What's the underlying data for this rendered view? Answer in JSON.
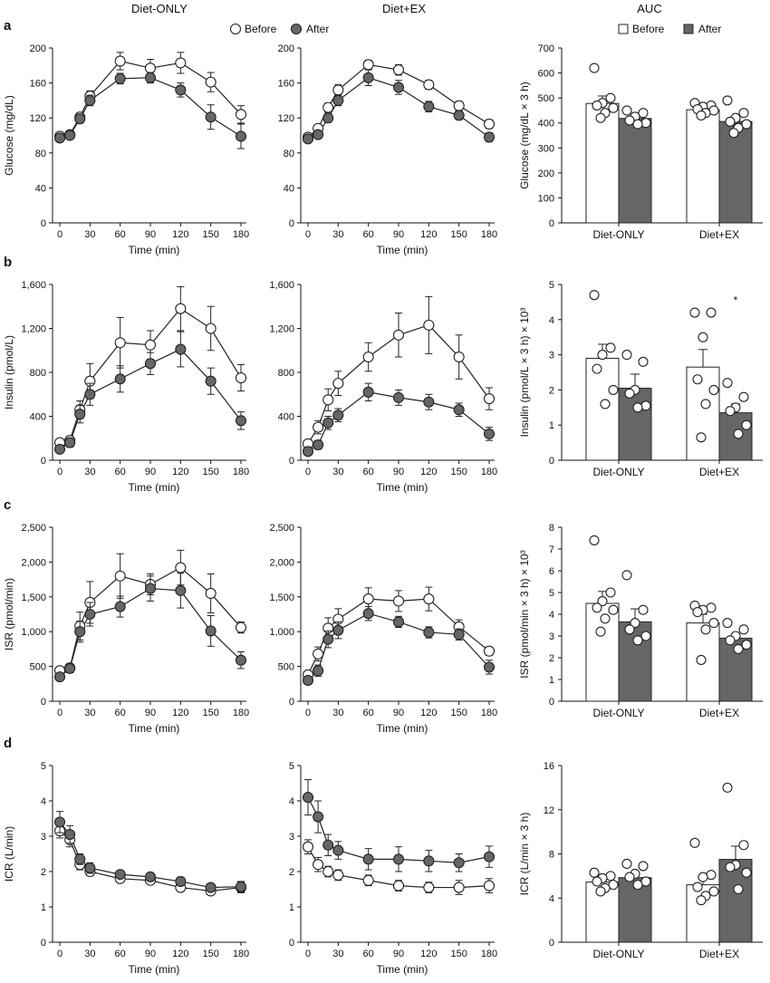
{
  "column_headers": [
    "Diet-ONLY",
    "Diet+EX",
    "AUC"
  ],
  "legend": {
    "line": {
      "before": "Before",
      "after": "After"
    },
    "bar": {
      "before": "Before",
      "after": "After"
    }
  },
  "colors": {
    "before_fill": "#ffffff",
    "after_fill": "#666666",
    "stroke": "#222222",
    "axis": "#111111"
  },
  "rows": [
    {
      "letter": "a",
      "line_ylabel": "Glucose (mg/dL)",
      "auc_ylabel": "Glucose (mg/dL × 3 h)"
    },
    {
      "letter": "b",
      "line_ylabel": "Insulin (pmol/L)",
      "auc_ylabel": "Insulin (pmol/L × 3 h) × 10³"
    },
    {
      "letter": "c",
      "line_ylabel": "ISR (pmol/min)",
      "auc_ylabel": "ISR (pmol/min × 3 h) × 10³"
    },
    {
      "letter": "d",
      "line_ylabel": "ICR (L/min)",
      "auc_ylabel": "ICR (L/min × 3 h)"
    }
  ],
  "chart_data": [
    {
      "id": "a-diet-only",
      "type": "line",
      "xlabel": "Time (min)",
      "ylabel": "Glucose (mg/dL)",
      "x": [
        0,
        10,
        20,
        30,
        60,
        90,
        120,
        150,
        180
      ],
      "xticks": [
        0,
        30,
        60,
        90,
        120,
        150,
        180
      ],
      "ylim": [
        0,
        200
      ],
      "yticks": [
        0,
        40,
        80,
        120,
        160,
        200
      ],
      "ytick_labels": [
        "0",
        "40",
        "80",
        "120",
        "160",
        "200"
      ],
      "series": [
        {
          "name": "Before",
          "values": [
            99,
            101,
            121,
            145,
            185,
            177,
            183,
            161,
            124
          ],
          "err": [
            3,
            3,
            5,
            6,
            10,
            10,
            12,
            11,
            10
          ]
        },
        {
          "name": "After",
          "values": [
            97,
            100,
            119,
            140,
            165,
            166,
            152,
            121,
            99
          ],
          "err": [
            3,
            3,
            5,
            6,
            6,
            6,
            8,
            14,
            14
          ]
        }
      ]
    },
    {
      "id": "a-diet-ex",
      "type": "line",
      "xlabel": "Time (min)",
      "ylabel": "",
      "x": [
        0,
        10,
        20,
        30,
        60,
        90,
        120,
        150,
        180
      ],
      "xticks": [
        0,
        30,
        60,
        90,
        120,
        150,
        180
      ],
      "ylim": [
        0,
        200
      ],
      "yticks": [
        0,
        40,
        80,
        120,
        160,
        200
      ],
      "ytick_labels": [
        "0",
        "40",
        "80",
        "120",
        "160",
        "200"
      ],
      "series": [
        {
          "name": "Before",
          "values": [
            98,
            108,
            132,
            152,
            181,
            175,
            158,
            134,
            113
          ],
          "err": [
            3,
            4,
            5,
            6,
            5,
            6,
            5,
            5,
            5
          ]
        },
        {
          "name": "After",
          "values": [
            96,
            101,
            120,
            140,
            166,
            155,
            133,
            123,
            98
          ],
          "err": [
            3,
            4,
            5,
            6,
            9,
            8,
            6,
            5,
            5
          ]
        }
      ]
    },
    {
      "id": "a-auc",
      "type": "bar",
      "categories": [
        "Diet-ONLY",
        "Diet+EX"
      ],
      "ylabel": "Glucose (mg/dL × 3 h)",
      "ylim": [
        0,
        700
      ],
      "yticks": [
        0,
        100,
        200,
        300,
        400,
        500,
        600,
        700
      ],
      "ytick_labels": [
        "0",
        "100",
        "200",
        "300",
        "400",
        "500",
        "600",
        "700"
      ],
      "series": [
        {
          "name": "Before",
          "values": [
            478,
            453
          ],
          "err": [
            30,
            15
          ],
          "points": [
            [
              620,
              500,
              480,
              470,
              460,
              440,
              420
            ],
            [
              480,
              470,
              465,
              455,
              450,
              440,
              430
            ]
          ]
        },
        {
          "name": "After",
          "values": [
            418,
            406
          ],
          "err": [
            15,
            18
          ],
          "points": [
            [
              450,
              440,
              425,
              410,
              400,
              395
            ],
            [
              490,
              440,
              420,
              405,
              395,
              380,
              360
            ]
          ]
        }
      ]
    },
    {
      "id": "b-diet-only",
      "type": "line",
      "xlabel": "Time (min)",
      "ylabel": "Insulin (pmol/L)",
      "x": [
        0,
        10,
        20,
        30,
        60,
        90,
        120,
        150,
        180
      ],
      "xticks": [
        0,
        30,
        60,
        90,
        120,
        150,
        180
      ],
      "ylim": [
        0,
        1600
      ],
      "yticks": [
        0,
        400,
        800,
        1200,
        1600
      ],
      "ytick_labels": [
        "0",
        "400",
        "800",
        "1,200",
        "1,600"
      ],
      "series": [
        {
          "name": "Before",
          "values": [
            160,
            180,
            460,
            720,
            1070,
            1050,
            1380,
            1200,
            750
          ],
          "err": [
            30,
            40,
            80,
            160,
            230,
            130,
            200,
            200,
            120
          ]
        },
        {
          "name": "After",
          "values": [
            100,
            160,
            420,
            600,
            740,
            880,
            1010,
            720,
            360
          ],
          "err": [
            30,
            40,
            80,
            100,
            120,
            100,
            160,
            120,
            80
          ]
        }
      ]
    },
    {
      "id": "b-diet-ex",
      "type": "line",
      "xlabel": "Time (min)",
      "ylabel": "",
      "x": [
        0,
        10,
        20,
        30,
        60,
        90,
        120,
        150,
        180
      ],
      "xticks": [
        0,
        30,
        60,
        90,
        120,
        150,
        180
      ],
      "ylim": [
        0,
        1600
      ],
      "yticks": [
        0,
        400,
        800,
        1200,
        1600
      ],
      "ytick_labels": [
        "0",
        "400",
        "800",
        "1,200",
        "1,600"
      ],
      "series": [
        {
          "name": "Before",
          "values": [
            150,
            300,
            550,
            700,
            940,
            1140,
            1230,
            940,
            560
          ],
          "err": [
            30,
            60,
            100,
            110,
            130,
            200,
            260,
            200,
            100
          ]
        },
        {
          "name": "After",
          "values": [
            80,
            140,
            340,
            410,
            620,
            570,
            530,
            460,
            240
          ],
          "err": [
            20,
            40,
            60,
            60,
            80,
            70,
            70,
            60,
            60
          ]
        }
      ]
    },
    {
      "id": "b-auc",
      "type": "bar",
      "categories": [
        "Diet-ONLY",
        "Diet+EX"
      ],
      "ylabel": "Insulin (pmol/L × 3 h) × 10³",
      "ylim": [
        0,
        5
      ],
      "yticks": [
        0,
        1,
        2,
        3,
        4,
        5
      ],
      "ytick_labels": [
        "0",
        "1",
        "2",
        "3",
        "4",
        "5"
      ],
      "annotations": [
        {
          "text": "*",
          "category": "Diet+EX",
          "series": "After",
          "y": 4.6
        }
      ],
      "series": [
        {
          "name": "Before",
          "values": [
            2.9,
            2.65
          ],
          "err": [
            0.4,
            0.5
          ],
          "points": [
            [
              4.7,
              3.2,
              3.0,
              2.6,
              2.0,
              1.6
            ],
            [
              4.2,
              4.2,
              3.5,
              2.3,
              2.0,
              1.6,
              0.65
            ]
          ]
        },
        {
          "name": "After",
          "values": [
            2.05,
            1.35
          ],
          "err": [
            0.4,
            0.25
          ],
          "points": [
            [
              3.0,
              2.8,
              2.0,
              1.9,
              1.55,
              1.5
            ],
            [
              2.2,
              1.8,
              1.5,
              1.4,
              1.0,
              0.75
            ]
          ]
        }
      ]
    },
    {
      "id": "c-diet-only",
      "type": "line",
      "xlabel": "Time (min)",
      "ylabel": "ISR (pmol/min)",
      "x": [
        0,
        10,
        20,
        30,
        60,
        90,
        120,
        150,
        180
      ],
      "xticks": [
        0,
        30,
        60,
        90,
        120,
        150,
        180
      ],
      "ylim": [
        0,
        2500
      ],
      "yticks": [
        0,
        500,
        1000,
        1500,
        2000,
        2500
      ],
      "ytick_labels": [
        "0",
        "500",
        "1,000",
        "1,500",
        "2,000",
        "2,500"
      ],
      "series": [
        {
          "name": "Before",
          "values": [
            440,
            480,
            1080,
            1420,
            1800,
            1680,
            1920,
            1550,
            1060
          ],
          "err": [
            40,
            60,
            200,
            300,
            320,
            150,
            250,
            280,
            80
          ]
        },
        {
          "name": "After",
          "values": [
            350,
            470,
            1000,
            1250,
            1360,
            1620,
            1590,
            1010,
            590
          ],
          "err": [
            40,
            60,
            150,
            170,
            150,
            180,
            250,
            220,
            120
          ]
        }
      ]
    },
    {
      "id": "c-diet-ex",
      "type": "line",
      "xlabel": "Time (min)",
      "ylabel": "",
      "x": [
        0,
        10,
        20,
        30,
        60,
        90,
        120,
        150,
        180
      ],
      "xticks": [
        0,
        30,
        60,
        90,
        120,
        150,
        180
      ],
      "ylim": [
        0,
        2500
      ],
      "yticks": [
        0,
        500,
        1000,
        1500,
        2000,
        2500
      ],
      "ytick_labels": [
        "0",
        "500",
        "1,000",
        "1,500",
        "2,000",
        "2,500"
      ],
      "series": [
        {
          "name": "Before",
          "values": [
            380,
            680,
            1050,
            1180,
            1470,
            1440,
            1470,
            1070,
            720
          ],
          "err": [
            40,
            100,
            150,
            150,
            160,
            150,
            170,
            100,
            60
          ]
        },
        {
          "name": "After",
          "values": [
            300,
            440,
            890,
            1020,
            1260,
            1140,
            990,
            960,
            490
          ],
          "err": [
            40,
            80,
            120,
            120,
            100,
            80,
            80,
            80,
            100
          ]
        }
      ]
    },
    {
      "id": "c-auc",
      "type": "bar",
      "categories": [
        "Diet-ONLY",
        "Diet+EX"
      ],
      "ylabel": "ISR (pmol/min × 3 h) × 10³",
      "ylim": [
        0,
        8
      ],
      "yticks": [
        0,
        1,
        2,
        3,
        4,
        5,
        6,
        7,
        8
      ],
      "ytick_labels": [
        "0",
        "1",
        "2",
        "3",
        "4",
        "5",
        "6",
        "7",
        "8"
      ],
      "series": [
        {
          "name": "Before",
          "values": [
            4.5,
            3.6
          ],
          "err": [
            0.55,
            0.4
          ],
          "points": [
            [
              7.4,
              5.0,
              4.6,
              4.3,
              4.2,
              3.8,
              3.2
            ],
            [
              4.4,
              4.3,
              4.2,
              4.1,
              3.6,
              3.3,
              1.9
            ]
          ]
        },
        {
          "name": "After",
          "values": [
            3.65,
            2.9
          ],
          "err": [
            0.6,
            0.2
          ],
          "points": [
            [
              5.8,
              4.2,
              3.6,
              3.3,
              3.0,
              2.8
            ],
            [
              3.6,
              3.3,
              3.0,
              2.8,
              2.6,
              2.4
            ]
          ]
        }
      ]
    },
    {
      "id": "d-diet-only",
      "type": "line",
      "xlabel": "Time (min)",
      "ylabel": "ICR (L/min)",
      "x": [
        0,
        10,
        20,
        30,
        60,
        90,
        120,
        150,
        180
      ],
      "xticks": [
        0,
        30,
        60,
        90,
        120,
        150,
        180
      ],
      "ylim": [
        0,
        5
      ],
      "yticks": [
        0,
        1,
        2,
        3,
        4,
        5
      ],
      "ytick_labels": [
        "0",
        "1",
        "2",
        "3",
        "4",
        "5"
      ],
      "series": [
        {
          "name": "Before",
          "values": [
            3.15,
            2.9,
            2.2,
            2.0,
            1.8,
            1.75,
            1.55,
            1.45,
            1.55
          ],
          "err": [
            0.2,
            0.2,
            0.15,
            0.12,
            0.1,
            0.1,
            0.1,
            0.1,
            0.15
          ]
        },
        {
          "name": "After",
          "values": [
            3.4,
            3.05,
            2.35,
            2.1,
            1.92,
            1.85,
            1.72,
            1.55,
            1.57
          ],
          "err": [
            0.3,
            0.25,
            0.15,
            0.15,
            0.1,
            0.1,
            0.12,
            0.1,
            0.15
          ]
        }
      ]
    },
    {
      "id": "d-diet-ex",
      "type": "line",
      "xlabel": "Time (min)",
      "ylabel": "",
      "x": [
        0,
        10,
        20,
        30,
        60,
        90,
        120,
        150,
        180
      ],
      "xticks": [
        0,
        30,
        60,
        90,
        120,
        150,
        180
      ],
      "ylim": [
        0,
        5
      ],
      "yticks": [
        0,
        1,
        2,
        3,
        4,
        5
      ],
      "ytick_labels": [
        "0",
        "1",
        "2",
        "3",
        "4",
        "5"
      ],
      "series": [
        {
          "name": "Before",
          "values": [
            2.7,
            2.2,
            2.0,
            1.9,
            1.75,
            1.6,
            1.55,
            1.55,
            1.6
          ],
          "err": [
            0.2,
            0.2,
            0.15,
            0.15,
            0.15,
            0.15,
            0.15,
            0.2,
            0.2
          ]
        },
        {
          "name": "After",
          "values": [
            4.1,
            3.55,
            2.75,
            2.6,
            2.35,
            2.35,
            2.3,
            2.25,
            2.42
          ],
          "err": [
            0.5,
            0.45,
            0.3,
            0.25,
            0.3,
            0.35,
            0.3,
            0.25,
            0.3
          ]
        }
      ]
    },
    {
      "id": "d-auc",
      "type": "bar",
      "categories": [
        "Diet-ONLY",
        "Diet+EX"
      ],
      "ylabel": "ICR (L/min × 3 h)",
      "ylim": [
        0,
        16
      ],
      "yticks": [
        0,
        4,
        8,
        12,
        16
      ],
      "ytick_labels": [
        "0",
        "4",
        "8",
        "12",
        "16"
      ],
      "series": [
        {
          "name": "Before",
          "values": [
            5.45,
            5.2
          ],
          "err": [
            0.35,
            0.7
          ],
          "points": [
            [
              6.3,
              6.0,
              5.8,
              5.5,
              5.2,
              4.9,
              4.6
            ],
            [
              9.0,
              6.1,
              5.9,
              5.0,
              4.6,
              4.2,
              3.8
            ]
          ]
        },
        {
          "name": "After",
          "values": [
            5.85,
            7.5
          ],
          "err": [
            0.35,
            1.2
          ],
          "points": [
            [
              7.1,
              6.9,
              6.2,
              5.9,
              5.5,
              5.2
            ],
            [
              14.0,
              8.8,
              7.0,
              6.8,
              6.3,
              4.8
            ]
          ]
        }
      ]
    }
  ]
}
